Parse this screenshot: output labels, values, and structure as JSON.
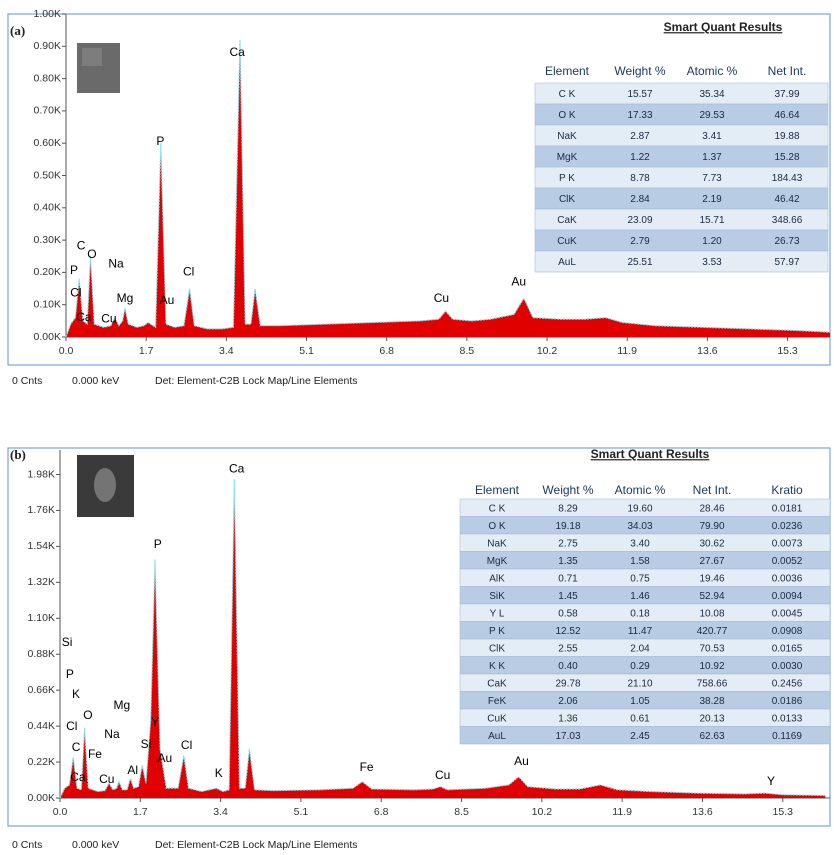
{
  "chart_data": [
    {
      "type": "area",
      "panel_label": "(a)",
      "color": "#e00000",
      "line_color": "#7fe3f0",
      "xlim": [
        0,
        16.2
      ],
      "ylim": [
        0,
        1000
      ],
      "xticks": [
        {
          "value": 0,
          "label": "0.0"
        },
        1.7,
        3.4,
        5.1,
        6.8,
        8.5,
        10.2,
        11.9,
        13.6,
        15.3
      ],
      "yticks": [
        {
          "value": 0,
          "label": "0.00K"
        },
        {
          "value": 100,
          "label": "0.10K"
        },
        {
          "value": 200,
          "label": "0.20K"
        },
        {
          "value": 300,
          "label": "0.30K"
        },
        {
          "value": 400,
          "label": "0.40K"
        },
        {
          "value": 500,
          "label": "0.50K"
        },
        {
          "value": 600,
          "label": "0.60K"
        },
        {
          "value": 700,
          "label": "0.70K"
        },
        {
          "value": 800,
          "label": "0.80K"
        },
        {
          "value": 900,
          "label": "0.90K"
        },
        {
          "value": 1000,
          "label": "1.00K"
        }
      ],
      "x": [
        0.0,
        0.1,
        0.2,
        0.28,
        0.36,
        0.45,
        0.52,
        0.6,
        0.8,
        0.95,
        1.04,
        1.12,
        1.2,
        1.25,
        1.32,
        1.5,
        1.65,
        1.74,
        1.9,
        2.01,
        2.12,
        2.3,
        2.5,
        2.62,
        2.72,
        3.0,
        3.3,
        3.55,
        3.69,
        3.8,
        3.92,
        4.01,
        4.12,
        4.5,
        5.5,
        6.5,
        7.5,
        7.9,
        8.05,
        8.2,
        8.6,
        9.0,
        9.5,
        9.71,
        9.9,
        10.5,
        11.0,
        11.44,
        11.8,
        12.5,
        13.5,
        14.5,
        15.5,
        16.2
      ],
      "values": [
        0,
        40,
        60,
        180,
        50,
        40,
        250,
        40,
        30,
        35,
        60,
        35,
        50,
        90,
        40,
        30,
        35,
        45,
        30,
        600,
        40,
        30,
        35,
        150,
        35,
        25,
        25,
        30,
        920,
        40,
        40,
        150,
        35,
        35,
        40,
        45,
        50,
        55,
        80,
        55,
        50,
        55,
        70,
        120,
        60,
        55,
        55,
        60,
        45,
        35,
        30,
        25,
        20,
        15
      ],
      "annotations": [
        {
          "text": "P",
          "x": 0.17,
          "y": 205
        },
        {
          "text": "C",
          "x": 0.32,
          "y": 280
        },
        {
          "text": "O",
          "x": 0.55,
          "y": 255
        },
        {
          "text": "Na",
          "x": 1.06,
          "y": 225
        },
        {
          "text": "Cl",
          "x": 0.21,
          "y": 135
        },
        {
          "text": "Ca",
          "x": 0.38,
          "y": 60
        },
        {
          "text": "Cu",
          "x": 0.91,
          "y": 55
        },
        {
          "text": "Mg",
          "x": 1.25,
          "y": 118
        },
        {
          "text": "Au",
          "x": 2.14,
          "y": 112
        },
        {
          "text": "P",
          "x": 2.0,
          "y": 605
        },
        {
          "text": "Cl",
          "x": 2.6,
          "y": 200
        },
        {
          "text": "Ca",
          "x": 3.63,
          "y": 880
        },
        {
          "text": "Cu",
          "x": 7.96,
          "y": 118
        },
        {
          "text": "Au",
          "x": 9.6,
          "y": 170
        }
      ],
      "table": {
        "title": "Smart Quant Results",
        "columns": [
          "Element",
          "Weight %",
          "Atomic %",
          "Net Int."
        ],
        "rows": [
          [
            "C K",
            "15.57",
            "35.34",
            "37.99"
          ],
          [
            "O K",
            "17.33",
            "29.53",
            "46.64"
          ],
          [
            "NaK",
            "2.87",
            "3.41",
            "19.88"
          ],
          [
            "MgK",
            "1.22",
            "1.37",
            "15.28"
          ],
          [
            "P K",
            "8.78",
            "7.73",
            "184.43"
          ],
          [
            "ClK",
            "2.84",
            "2.19",
            "46.42"
          ],
          [
            "CaK",
            "23.09",
            "15.71",
            "348.66"
          ],
          [
            "CuK",
            "2.79",
            "1.20",
            "26.73"
          ],
          [
            "AuL",
            "25.51",
            "3.53",
            "57.97"
          ]
        ]
      },
      "footer": [
        "0 Cnts",
        "0.000 keV",
        "Det: Element-C2B Lock Map/Line Elements"
      ]
    },
    {
      "type": "area",
      "panel_label": "(b)",
      "color": "#e00000",
      "line_color": "#7fe3f0",
      "xlim": [
        0,
        16.3
      ],
      "ylim": [
        0,
        2130
      ],
      "xticks": [
        {
          "value": 0,
          "label": "0.0"
        },
        1.7,
        3.4,
        5.1,
        6.8,
        8.5,
        10.2,
        11.9,
        13.6,
        15.3
      ],
      "yticks": [
        {
          "value": 0,
          "label": "0.00K"
        },
        {
          "value": 220,
          "label": "0.22K"
        },
        {
          "value": 440,
          "label": "0.44K"
        },
        {
          "value": 660,
          "label": "0.66K"
        },
        {
          "value": 880,
          "label": "0.88K"
        },
        {
          "value": 1100,
          "label": "1.10K"
        },
        {
          "value": 1320,
          "label": "1.32K"
        },
        {
          "value": 1540,
          "label": "1.54K"
        },
        {
          "value": 1760,
          "label": "1.76K"
        },
        {
          "value": 1980,
          "label": "1.98K"
        }
      ],
      "x": [
        0.0,
        0.1,
        0.2,
        0.28,
        0.36,
        0.45,
        0.52,
        0.6,
        0.8,
        0.95,
        1.04,
        1.12,
        1.2,
        1.25,
        1.32,
        1.42,
        1.49,
        1.56,
        1.66,
        1.74,
        1.82,
        1.92,
        2.01,
        2.12,
        2.25,
        2.5,
        2.62,
        2.72,
        3.0,
        3.31,
        3.45,
        3.58,
        3.69,
        3.8,
        3.92,
        4.01,
        4.12,
        4.5,
        5.5,
        6.2,
        6.4,
        6.6,
        7.5,
        7.9,
        8.05,
        8.2,
        9.0,
        9.5,
        9.71,
        9.9,
        10.5,
        11.0,
        11.44,
        11.8,
        12.5,
        13.5,
        14.5,
        14.92,
        15.3,
        16.2
      ],
      "values": [
        0,
        60,
        80,
        250,
        60,
        50,
        430,
        60,
        40,
        45,
        90,
        50,
        60,
        100,
        50,
        50,
        120,
        60,
        70,
        200,
        90,
        480,
        1460,
        300,
        60,
        60,
        260,
        60,
        40,
        60,
        40,
        50,
        1950,
        60,
        60,
        300,
        50,
        45,
        50,
        60,
        100,
        55,
        50,
        55,
        70,
        50,
        60,
        80,
        130,
        70,
        55,
        55,
        80,
        50,
        40,
        30,
        25,
        30,
        20,
        15
      ],
      "annotations": [
        {
          "text": "Si",
          "x": 0.15,
          "y": 950
        },
        {
          "text": "P",
          "x": 0.21,
          "y": 754
        },
        {
          "text": "K",
          "x": 0.34,
          "y": 632
        },
        {
          "text": "Cl",
          "x": 0.25,
          "y": 435
        },
        {
          "text": "O",
          "x": 0.59,
          "y": 503
        },
        {
          "text": "C",
          "x": 0.34,
          "y": 307
        },
        {
          "text": "Fe",
          "x": 0.74,
          "y": 264
        },
        {
          "text": "Na",
          "x": 1.1,
          "y": 386
        },
        {
          "text": "Mg",
          "x": 1.31,
          "y": 564
        },
        {
          "text": "Ca",
          "x": 0.38,
          "y": 123
        },
        {
          "text": "Cu",
          "x": 0.99,
          "y": 110
        },
        {
          "text": "Al",
          "x": 1.54,
          "y": 166
        },
        {
          "text": "Si",
          "x": 1.82,
          "y": 325
        },
        {
          "text": "Y",
          "x": 2.01,
          "y": 460
        },
        {
          "text": "Au",
          "x": 2.22,
          "y": 239
        },
        {
          "text": "P",
          "x": 2.07,
          "y": 1551
        },
        {
          "text": "Cl",
          "x": 2.68,
          "y": 319
        },
        {
          "text": "K",
          "x": 3.36,
          "y": 147
        },
        {
          "text": "Ca",
          "x": 3.74,
          "y": 2011
        },
        {
          "text": "Fe",
          "x": 6.49,
          "y": 184
        },
        {
          "text": "Cu",
          "x": 8.1,
          "y": 135
        },
        {
          "text": "Au",
          "x": 9.77,
          "y": 221
        },
        {
          "text": "Y",
          "x": 15.05,
          "y": 98
        }
      ],
      "table": {
        "title": "Smart Quant Results",
        "columns": [
          "Element",
          "Weight %",
          "Atomic %",
          "Net Int.",
          "Kratio"
        ],
        "rows": [
          [
            "C K",
            "8.29",
            "19.60",
            "28.46",
            "0.0181"
          ],
          [
            "O K",
            "19.18",
            "34.03",
            "79.90",
            "0.0236"
          ],
          [
            "NaK",
            "2.75",
            "3.40",
            "30.62",
            "0.0073"
          ],
          [
            "MgK",
            "1.35",
            "1.58",
            "27.67",
            "0.0052"
          ],
          [
            "AlK",
            "0.71",
            "0.75",
            "19.46",
            "0.0036"
          ],
          [
            "SiK",
            "1.45",
            "1.46",
            "52.94",
            "0.0094"
          ],
          [
            "Y L",
            "0.58",
            "0.18",
            "10.08",
            "0.0045"
          ],
          [
            "P K",
            "12.52",
            "11.47",
            "420.77",
            "0.0908"
          ],
          [
            "ClK",
            "2.55",
            "2.04",
            "70.53",
            "0.0165"
          ],
          [
            "K K",
            "0.40",
            "0.29",
            "10.92",
            "0.0030"
          ],
          [
            "CaK",
            "29.78",
            "21.10",
            "758.66",
            "0.2456"
          ],
          [
            "FeK",
            "2.06",
            "1.05",
            "38.28",
            "0.0186"
          ],
          [
            "CuK",
            "1.36",
            "0.61",
            "20.13",
            "0.0133"
          ],
          [
            "AuL",
            "17.03",
            "2.45",
            "62.63",
            "0.1169"
          ]
        ]
      },
      "footer": [
        "0 Cnts",
        "0.000 keV",
        "Det: Element-C2B Lock Map/Line Elements"
      ]
    }
  ]
}
